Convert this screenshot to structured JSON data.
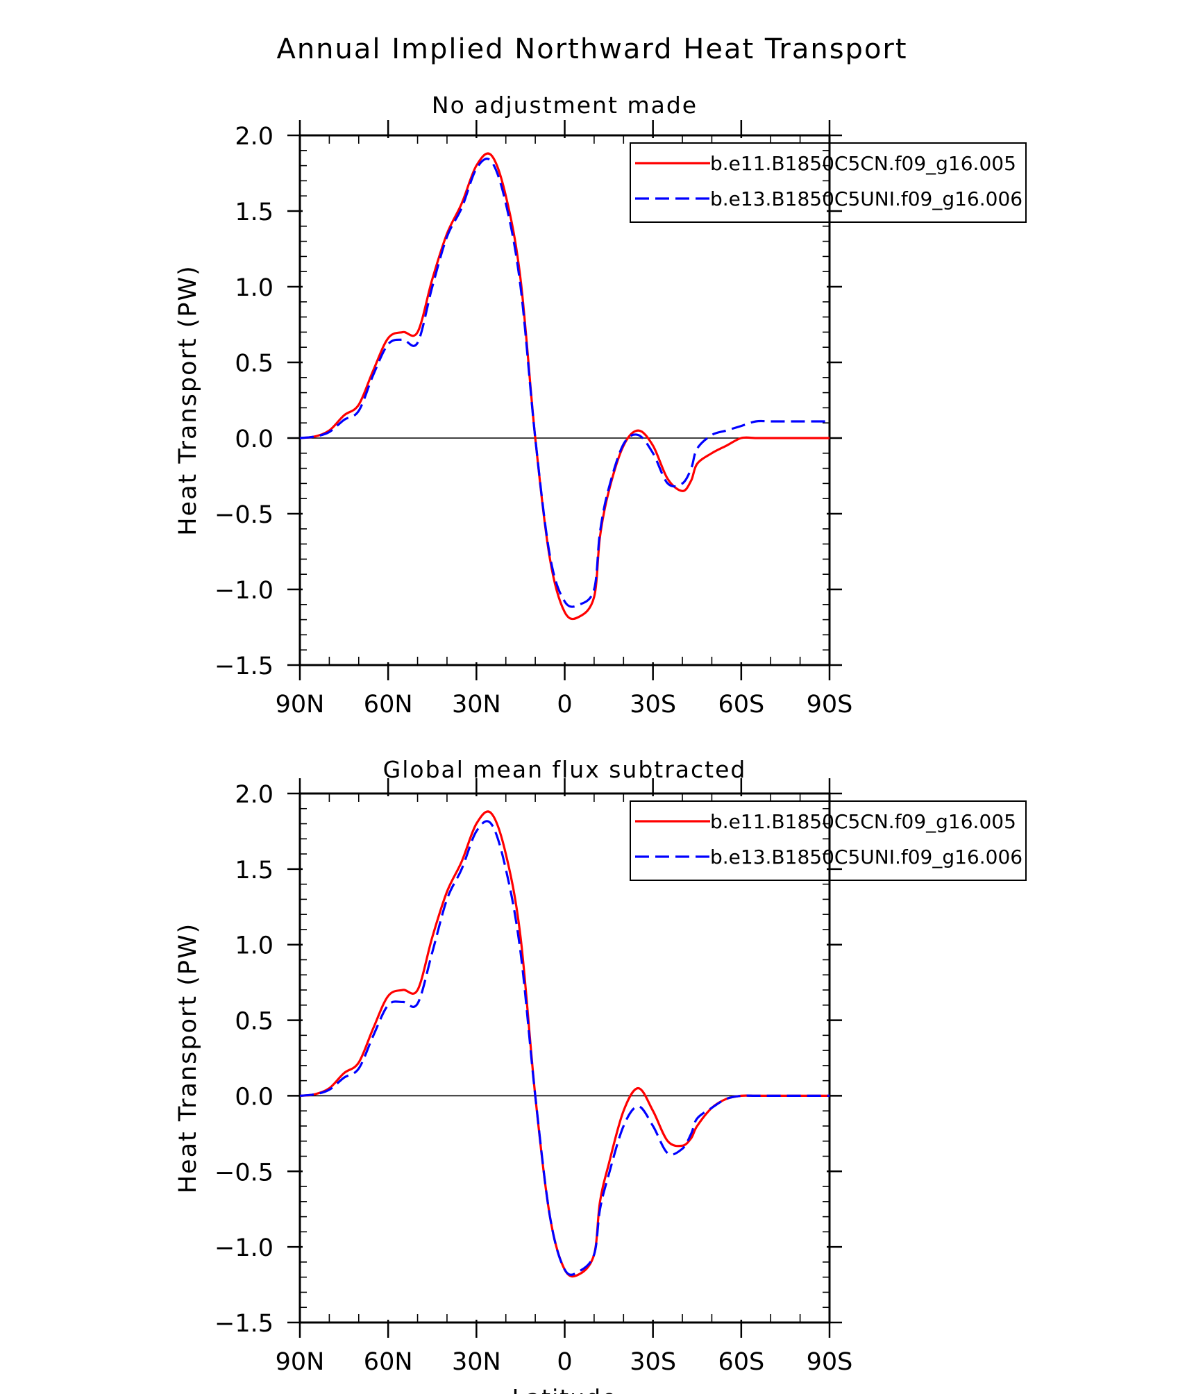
{
  "page_title": "Annual Implied Northward Heat Transport",
  "chart_data": [
    {
      "type": "line",
      "title": "No adjustment made",
      "xlabel": "",
      "ylabel": "Heat Transport (PW)",
      "xlim": [
        90,
        -90
      ],
      "ylim": [
        -1.5,
        2.0
      ],
      "x_ticks": [
        90,
        60,
        30,
        0,
        -30,
        -60,
        -90
      ],
      "x_tick_labels": [
        "90N",
        "60N",
        "30N",
        "0",
        "30S",
        "60S",
        "90S"
      ],
      "y_ticks": [
        -1.5,
        -1.0,
        -0.5,
        0.0,
        0.5,
        1.0,
        1.5,
        2.0
      ],
      "y_tick_labels": [
        "−1.5",
        "−1.0",
        "−0.5",
        "0.0",
        "0.5",
        "1.0",
        "1.5",
        "2.0"
      ],
      "zero_line": true,
      "legend_position": "top-right",
      "series": [
        {
          "name": "b.e11.B1850C5CN.f09_g16.005",
          "color": "#ff0000",
          "dash": "solid",
          "x": [
            90,
            85,
            80,
            75,
            70,
            65,
            60,
            55,
            50,
            45,
            40,
            35,
            30,
            25,
            20,
            15,
            10,
            5,
            0,
            -5,
            -10,
            -12,
            -15,
            -20,
            -25,
            -30,
            -35,
            -40,
            -43,
            -45,
            -50,
            -55,
            -60,
            -65,
            -70,
            -75,
            -80,
            -85,
            -90
          ],
          "y": [
            0.0,
            0.01,
            0.05,
            0.15,
            0.22,
            0.45,
            0.66,
            0.7,
            0.7,
            1.05,
            1.35,
            1.55,
            1.8,
            1.87,
            1.6,
            1.05,
            0.0,
            -0.8,
            -1.15,
            -1.18,
            -1.05,
            -0.65,
            -0.35,
            -0.05,
            0.05,
            -0.05,
            -0.27,
            -0.35,
            -0.28,
            -0.17,
            -0.1,
            -0.05,
            0.0,
            0.0,
            0.0,
            0.0,
            0.0,
            0.0,
            0.0
          ]
        },
        {
          "name": "b.e13.B1850C5UNI.f09_g16.006",
          "color": "#0000ff",
          "dash": "dashed",
          "x": [
            90,
            85,
            80,
            75,
            70,
            65,
            60,
            55,
            50,
            45,
            40,
            35,
            30,
            25,
            20,
            15,
            10,
            5,
            0,
            -5,
            -10,
            -12,
            -15,
            -20,
            -25,
            -30,
            -35,
            -40,
            -43,
            -45,
            -50,
            -55,
            -60,
            -65,
            -70,
            -75,
            -80,
            -85,
            -90
          ],
          "y": [
            0.0,
            0.01,
            0.04,
            0.12,
            0.18,
            0.42,
            0.62,
            0.65,
            0.63,
            1.0,
            1.33,
            1.52,
            1.78,
            1.83,
            1.55,
            1.0,
            0.0,
            -0.78,
            -1.08,
            -1.1,
            -1.0,
            -0.62,
            -0.33,
            -0.04,
            0.02,
            -0.1,
            -0.3,
            -0.3,
            -0.2,
            -0.07,
            0.02,
            0.05,
            0.08,
            0.11,
            0.11,
            0.11,
            0.11,
            0.11,
            0.11
          ]
        }
      ]
    },
    {
      "type": "line",
      "title": "Global mean flux subtracted",
      "xlabel": "Latitude",
      "ylabel": "Heat Transport (PW)",
      "xlim": [
        90,
        -90
      ],
      "ylim": [
        -1.5,
        2.0
      ],
      "x_ticks": [
        90,
        60,
        30,
        0,
        -30,
        -60,
        -90
      ],
      "x_tick_labels": [
        "90N",
        "60N",
        "30N",
        "0",
        "30S",
        "60S",
        "90S"
      ],
      "y_ticks": [
        -1.5,
        -1.0,
        -0.5,
        0.0,
        0.5,
        1.0,
        1.5,
        2.0
      ],
      "y_tick_labels": [
        "−1.5",
        "−1.0",
        "−0.5",
        "0.0",
        "0.5",
        "1.0",
        "1.5",
        "2.0"
      ],
      "zero_line": true,
      "legend_position": "top-right",
      "series": [
        {
          "name": "b.e11.B1850C5CN.f09_g16.005",
          "color": "#ff0000",
          "dash": "solid",
          "x": [
            90,
            85,
            80,
            75,
            70,
            65,
            60,
            55,
            50,
            45,
            40,
            35,
            30,
            25,
            20,
            15,
            10,
            5,
            0,
            -5,
            -10,
            -12,
            -15,
            -20,
            -25,
            -30,
            -35,
            -40,
            -43,
            -45,
            -50,
            -55,
            -60,
            -65,
            -70,
            -75,
            -80,
            -85,
            -90
          ],
          "y": [
            0.0,
            0.01,
            0.05,
            0.15,
            0.22,
            0.45,
            0.66,
            0.7,
            0.7,
            1.05,
            1.35,
            1.55,
            1.8,
            1.87,
            1.6,
            1.05,
            0.0,
            -0.8,
            -1.15,
            -1.18,
            -1.05,
            -0.7,
            -0.45,
            -0.1,
            0.05,
            -0.1,
            -0.3,
            -0.33,
            -0.28,
            -0.2,
            -0.08,
            -0.02,
            0.0,
            0.0,
            0.0,
            0.0,
            0.0,
            0.0,
            0.0
          ]
        },
        {
          "name": "b.e13.B1850C5UNI.f09_g16.006",
          "color": "#0000ff",
          "dash": "dashed",
          "x": [
            90,
            85,
            80,
            75,
            70,
            65,
            60,
            55,
            50,
            45,
            40,
            35,
            30,
            25,
            20,
            15,
            10,
            5,
            0,
            -5,
            -10,
            -12,
            -15,
            -20,
            -25,
            -30,
            -35,
            -40,
            -43,
            -45,
            -50,
            -55,
            -60,
            -65,
            -70,
            -75,
            -80,
            -85,
            -90
          ],
          "y": [
            0.0,
            0.01,
            0.04,
            0.12,
            0.18,
            0.4,
            0.6,
            0.62,
            0.61,
            0.95,
            1.3,
            1.5,
            1.75,
            1.8,
            1.5,
            0.95,
            0.0,
            -0.8,
            -1.15,
            -1.16,
            -1.05,
            -0.75,
            -0.52,
            -0.2,
            -0.07,
            -0.2,
            -0.38,
            -0.35,
            -0.25,
            -0.15,
            -0.08,
            -0.02,
            0.0,
            0.0,
            0.0,
            0.0,
            0.0,
            0.0,
            0.0
          ]
        }
      ]
    }
  ]
}
